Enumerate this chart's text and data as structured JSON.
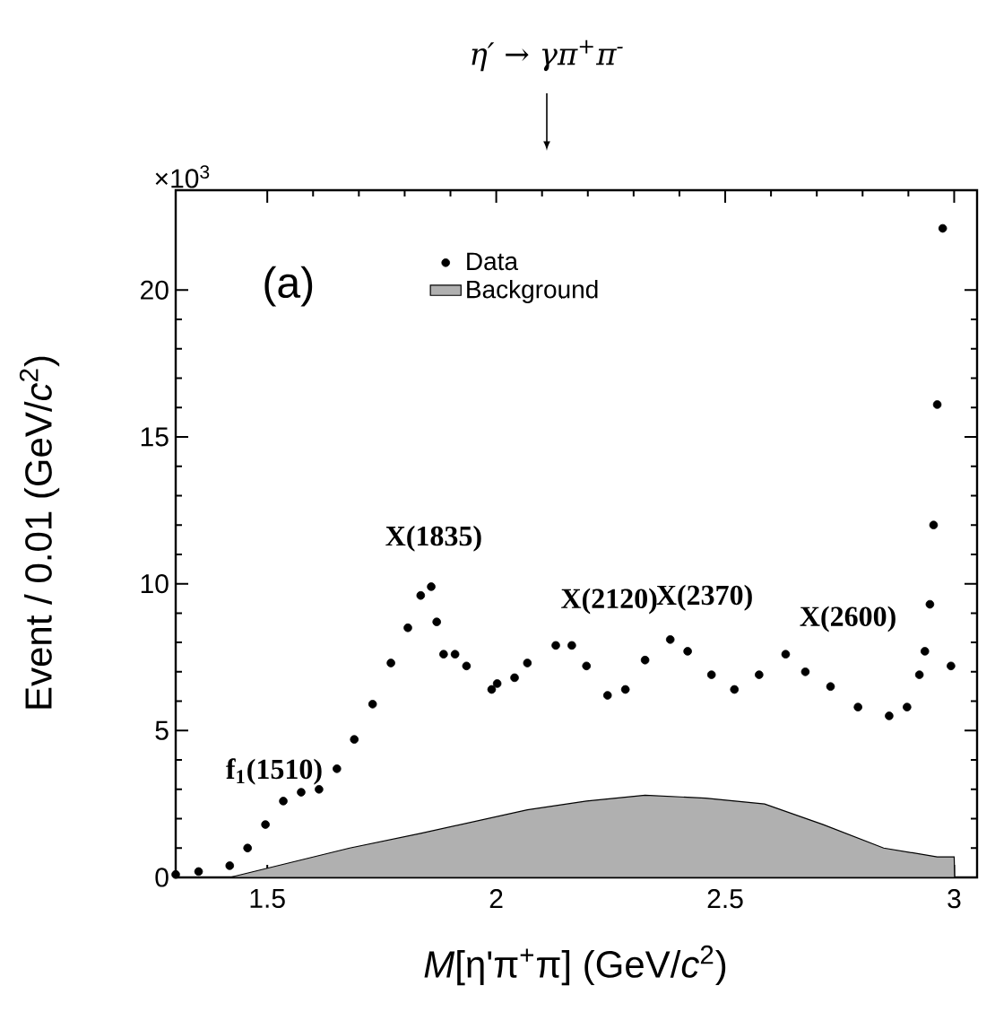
{
  "chart_data": {
    "type": "scatter",
    "title": "η′ → γπ$^{+}$π$^{-}$",
    "xlabel": "*M*[η'π$^{+}$π] (GeV/*c*$^{2}$)",
    "ylabel": "Event / 0.01 (GeV/*c*$^{2}$)",
    "annotations": [
      "×10$^{3}$",
      "(a)",
      "f$_{1}$(1510)",
      "X(1835)",
      "X(2120)",
      "X(2370)",
      "X(2600)"
    ],
    "xlim": [
      1.3,
      3.05
    ],
    "ylim": [
      0,
      23.4
    ],
    "xticks": [
      1.5,
      2,
      2.5,
      3
    ],
    "yticks": [
      0,
      5,
      10,
      15,
      20
    ],
    "legend": "top left",
    "series": [
      {
        "name": "Data",
        "color": "#000000",
        "x": [
          1.3,
          1.35,
          1.418,
          1.457,
          1.496,
          1.535,
          1.574,
          1.613,
          1.652,
          1.69,
          1.73,
          1.77,
          1.807,
          1.835,
          1.858,
          1.87,
          1.885,
          1.91,
          1.935,
          1.99,
          2.002,
          2.04,
          2.068,
          2.13,
          2.165,
          2.197,
          2.243,
          2.282,
          2.325,
          2.38,
          2.418,
          2.47,
          2.52,
          2.574,
          2.632,
          2.675,
          2.73,
          2.79,
          2.858,
          2.897,
          2.924,
          2.936,
          2.947,
          2.955,
          2.963,
          2.975,
          2.993
        ],
        "values": [
          0.1,
          0.2,
          0.4,
          1.0,
          1.8,
          2.6,
          2.9,
          3.0,
          3.7,
          4.7,
          5.9,
          7.3,
          8.5,
          9.6,
          9.9,
          8.7,
          7.6,
          7.6,
          7.2,
          6.4,
          6.6,
          6.8,
          7.3,
          7.9,
          7.9,
          7.2,
          6.2,
          6.4,
          7.4,
          8.1,
          7.7,
          6.9,
          6.4,
          6.9,
          7.6,
          7.0,
          6.5,
          5.8,
          5.5,
          5.8,
          6.9,
          7.7,
          9.3,
          12.0,
          16.1,
          22.1,
          7.2
        ]
      },
      {
        "name": "Background",
        "type": "area",
        "color": "#b0b0b0",
        "x": [
          1.418,
          1.51,
          1.68,
          1.835,
          2.068,
          2.197,
          2.325,
          2.457,
          2.586,
          2.714,
          2.846,
          2.963,
          3.0,
          3.001
        ],
        "values": [
          0,
          0.35,
          1.0,
          1.5,
          2.3,
          2.6,
          2.8,
          2.7,
          2.5,
          1.8,
          1.0,
          0.7,
          0.7,
          0
        ]
      }
    ]
  }
}
